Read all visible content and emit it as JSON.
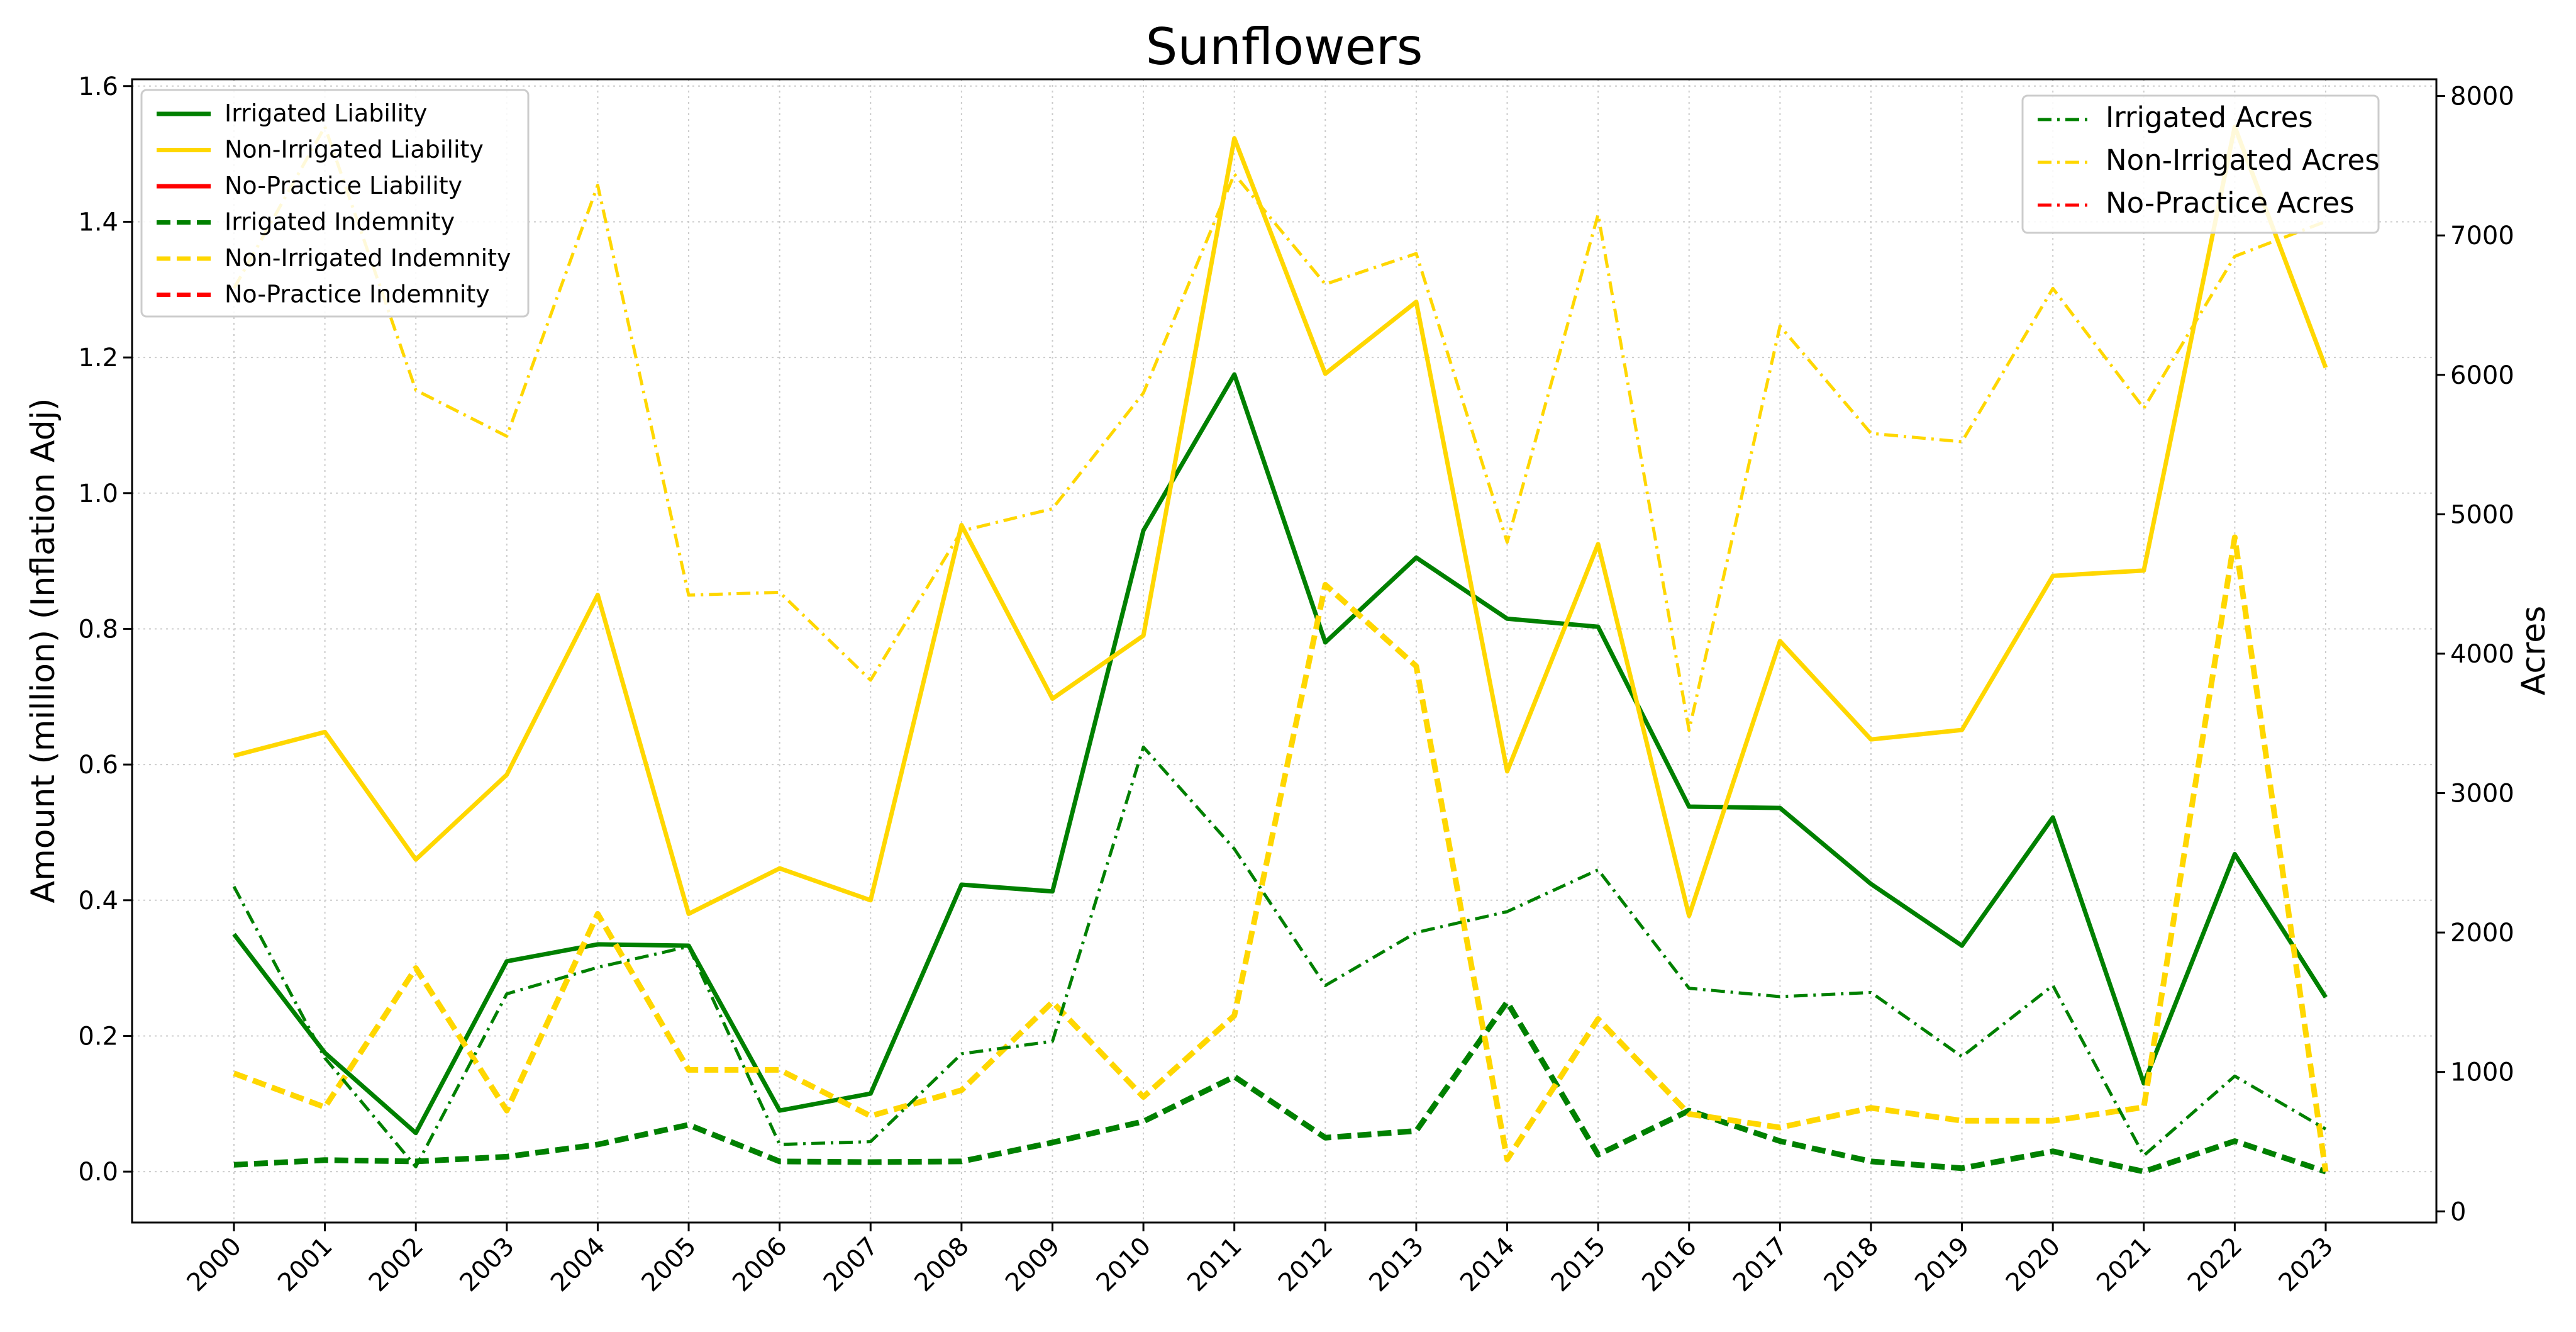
{
  "chart_data": {
    "type": "line",
    "title": "Sunflowers",
    "ylabel": "Amount (million) (Inflation Adj)",
    "y2label": "Acres",
    "ylim": [
      -0.075,
      1.61
    ],
    "y2lim": [
      -80,
      8120
    ],
    "yticks": [
      "0.0",
      "0.2",
      "0.4",
      "0.6",
      "0.8",
      "1.0",
      "1.2",
      "1.4",
      "1.6"
    ],
    "y2ticks": [
      "0",
      "1000",
      "2000",
      "3000",
      "4000",
      "5000",
      "6000",
      "7000",
      "8000"
    ],
    "grid": true,
    "x": [
      "2000",
      "2001",
      "2002",
      "2003",
      "2004",
      "2005",
      "2006",
      "2007",
      "2008",
      "2009",
      "2010",
      "2011",
      "2012",
      "2013",
      "2014",
      "2015",
      "2016",
      "2017",
      "2018",
      "2019",
      "2020",
      "2021",
      "2022",
      "2023"
    ],
    "legend_left": {
      "placement": "upper left",
      "entries": [
        {
          "label": "Irrigated Liability",
          "color": "#008000",
          "style": "solid"
        },
        {
          "label": "Non-Irrigated Liability",
          "color": "#FFD700",
          "style": "solid"
        },
        {
          "label": "No-Practice Liability",
          "color": "#FF0000",
          "style": "solid"
        },
        {
          "label": "Irrigated Indemnity",
          "color": "#008000",
          "style": "dashed"
        },
        {
          "label": "Non-Irrigated Indemnity",
          "color": "#FFD700",
          "style": "dashed"
        },
        {
          "label": "No-Practice Indemnity",
          "color": "#FF0000",
          "style": "dashed"
        }
      ]
    },
    "legend_right": {
      "placement": "upper right",
      "entries": [
        {
          "label": "Irrigated Acres",
          "color": "#008000",
          "style": "dashdot"
        },
        {
          "label": "Non-Irrigated Acres",
          "color": "#FFD700",
          "style": "dashdot"
        },
        {
          "label": "No-Practice Acres",
          "color": "#FF0000",
          "style": "dashdot"
        }
      ]
    },
    "series": [
      {
        "name": "Irrigated Liability",
        "axis": "left",
        "color": "#008000",
        "style": "solid",
        "values": [
          0.35,
          0.175,
          0.057,
          0.31,
          0.335,
          0.333,
          0.09,
          0.115,
          0.423,
          0.413,
          0.945,
          1.175,
          0.78,
          0.905,
          0.815,
          0.803,
          0.538,
          0.536,
          0.424,
          0.333,
          0.522,
          0.13,
          0.468,
          0.257
        ]
      },
      {
        "name": "Non-Irrigated Liability",
        "axis": "left",
        "color": "#FFD700",
        "style": "solid",
        "values": [
          0.613,
          0.648,
          0.46,
          0.585,
          0.85,
          0.38,
          0.447,
          0.4,
          0.953,
          0.697,
          0.79,
          1.523,
          1.176,
          1.282,
          0.59,
          0.925,
          0.377,
          0.782,
          0.637,
          0.651,
          0.878,
          0.886,
          1.54,
          1.185
        ]
      },
      {
        "name": "Irrigated Indemnity",
        "axis": "left",
        "color": "#008000",
        "style": "dashed",
        "values": [
          0.01,
          0.017,
          0.015,
          0.022,
          0.04,
          0.069,
          0.015,
          0.014,
          0.015,
          0.043,
          0.074,
          0.14,
          0.05,
          0.06,
          0.25,
          0.025,
          0.09,
          0.045,
          0.015,
          0.005,
          0.03,
          0.0,
          0.045,
          0.0
        ]
      },
      {
        "name": "Non-Irrigated Indemnity",
        "axis": "left",
        "color": "#FFD700",
        "style": "dashed",
        "values": [
          0.145,
          0.095,
          0.3,
          0.09,
          0.38,
          0.15,
          0.15,
          0.082,
          0.12,
          0.25,
          0.11,
          0.23,
          0.865,
          0.745,
          0.018,
          0.225,
          0.085,
          0.065,
          0.094,
          0.075,
          0.075,
          0.095,
          0.935,
          0.0
        ]
      },
      {
        "name": "Irrigated Acres",
        "axis": "right",
        "color": "#008000",
        "style": "dashdot",
        "values": [
          2330,
          1100,
          320,
          1560,
          1750,
          1900,
          480,
          500,
          1130,
          1220,
          3330,
          2600,
          1620,
          2000,
          2150,
          2450,
          1600,
          1540,
          1570,
          1110,
          1620,
          400,
          970,
          590
        ]
      },
      {
        "name": "Non-Irrigated Acres",
        "axis": "right",
        "color": "#FFD700",
        "style": "dashdot",
        "values": [
          6620,
          7780,
          5890,
          5560,
          7360,
          4420,
          4440,
          3810,
          4880,
          5040,
          5870,
          7440,
          6650,
          6870,
          4800,
          7150,
          3450,
          6350,
          5580,
          5520,
          6620,
          5760,
          6850,
          7100
        ]
      }
    ]
  }
}
